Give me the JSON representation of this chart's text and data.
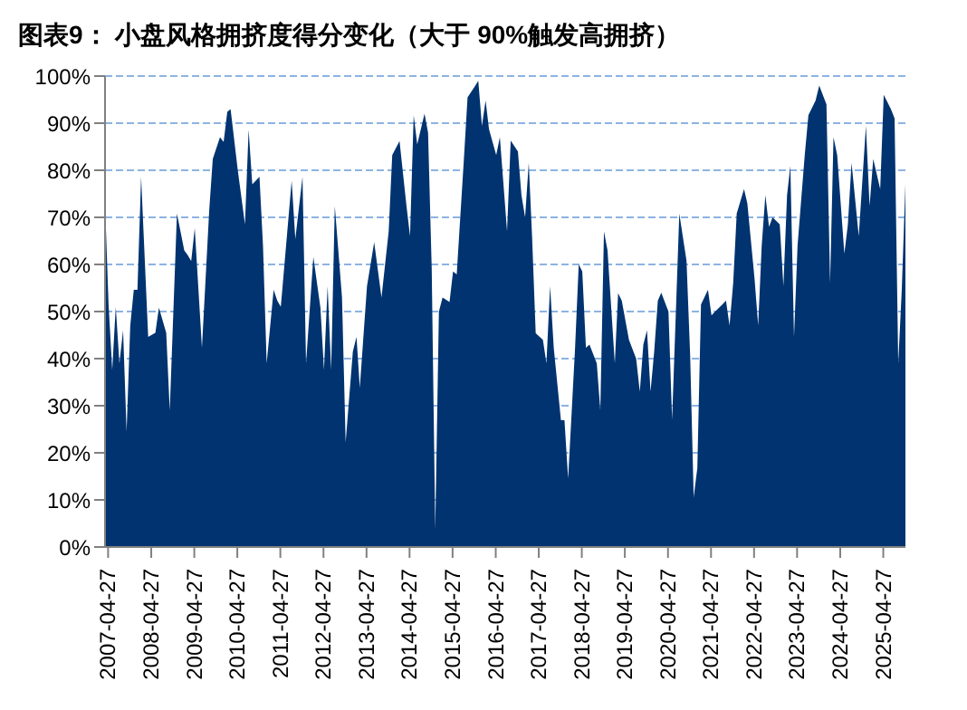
{
  "chart_data": {
    "type": "area",
    "title": "图表9：  小盘风格拥挤度得分变化（大于 90%触发高拥挤）",
    "x": [
      "2007-04",
      "2007-05",
      "2007-06",
      "2007-07",
      "2007-08",
      "2007-09",
      "2007-10",
      "2007-11",
      "2007-12",
      "2008-01",
      "2008-02",
      "2008-04",
      "2008-06",
      "2008-07",
      "2008-09",
      "2008-10",
      "2008-12",
      "2009-02",
      "2009-03",
      "2009-04",
      "2009-05",
      "2009-07",
      "2009-09",
      "2009-10",
      "2009-12",
      "2010-01",
      "2010-02",
      "2010-03",
      "2010-05",
      "2010-07",
      "2010-08",
      "2010-09",
      "2010-11",
      "2010-12",
      "2011-01",
      "2011-03",
      "2011-04",
      "2011-05",
      "2011-08",
      "2011-09",
      "2011-11",
      "2011-12",
      "2012-02",
      "2012-04",
      "2012-05",
      "2012-06",
      "2012-07",
      "2012-08",
      "2012-10",
      "2012-11",
      "2013-01",
      "2013-02",
      "2013-03",
      "2013-05",
      "2013-07",
      "2013-09",
      "2013-11",
      "2013-12",
      "2014-02",
      "2014-04",
      "2014-05",
      "2014-06",
      "2014-07",
      "2014-09",
      "2014-10",
      "2014-11",
      "2014-12",
      "2015-01",
      "2015-02",
      "2015-04",
      "2015-05",
      "2015-06",
      "2015-08",
      "2015-09",
      "2015-11",
      "2015-12",
      "2016-01",
      "2016-02",
      "2016-03",
      "2016-05",
      "2016-06",
      "2016-08",
      "2016-09",
      "2016-11",
      "2016-12",
      "2017-01",
      "2017-02",
      "2017-03",
      "2017-04",
      "2017-06",
      "2017-07",
      "2017-08",
      "2017-09",
      "2017-11",
      "2017-12",
      "2018-01",
      "2018-03",
      "2018-04",
      "2018-05",
      "2018-06",
      "2018-07",
      "2018-09",
      "2018-10",
      "2018-11",
      "2018-12",
      "2019-02",
      "2019-03",
      "2019-04",
      "2019-06",
      "2019-08",
      "2019-09",
      "2019-10",
      "2019-11",
      "2019-12",
      "2020-01",
      "2020-02",
      "2020-03",
      "2020-05",
      "2020-06",
      "2020-08",
      "2020-10",
      "2020-11",
      "2020-12",
      "2021-01",
      "2021-02",
      "2021-04",
      "2021-05",
      "2021-06",
      "2021-08",
      "2021-09",
      "2021-10",
      "2021-11",
      "2021-12",
      "2022-02",
      "2022-03",
      "2022-05",
      "2022-06",
      "2022-07",
      "2022-08",
      "2022-09",
      "2022-10",
      "2022-12",
      "2023-01",
      "2023-02",
      "2023-03",
      "2023-04",
      "2023-05",
      "2023-07",
      "2023-08",
      "2023-10",
      "2023-11",
      "2024-01",
      "2024-02",
      "2024-03",
      "2024-04",
      "2024-06",
      "2024-07",
      "2024-08",
      "2024-10",
      "2024-12",
      "2025-01",
      "2025-02",
      "2025-04",
      "2025-05",
      "2025-07",
      "2025-08",
      "2025-09",
      "2025-10",
      "2025-11"
    ],
    "series": [
      {
        "color": "#00336f",
        "values": [
          73,
          51.5,
          37.6,
          51,
          39,
          46,
          24.5,
          47,
          54.6,
          54.6,
          78.6,
          44.6,
          45.5,
          50.8,
          45.5,
          29,
          70.8,
          63,
          62,
          60.7,
          67.7,
          42.3,
          71.6,
          82.4,
          87,
          86,
          92.4,
          93,
          80,
          68.5,
          88.6,
          77,
          78.6,
          63.9,
          39,
          54.6,
          52.3,
          51,
          77.8,
          65.4,
          78.6,
          39,
          61.6,
          50.8,
          37.6,
          55.4,
          37.6,
          72.4,
          53,
          22.2,
          41.5,
          44.6,
          33.8,
          55.4,
          64.7,
          53,
          67,
          83.2,
          86.2,
          72.4,
          66,
          91.7,
          85.5,
          92,
          88,
          59,
          3.7,
          50,
          53,
          52,
          58.5,
          57.9,
          82.4,
          95.5,
          97.8,
          99,
          89.4,
          94.8,
          88.7,
          83.2,
          87,
          67,
          86.3,
          84,
          74.7,
          70,
          81.6,
          66,
          45.4,
          44,
          39,
          55.4,
          42.3,
          26.9,
          26.9,
          14.5,
          42.3,
          60,
          58.5,
          42.3,
          43,
          39,
          29,
          67,
          63,
          39,
          53.9,
          52.3,
          44,
          40,
          33,
          43,
          46,
          33,
          41.5,
          52.3,
          54,
          50,
          27,
          70.8,
          60.8,
          40.7,
          10.6,
          16.8,
          51.5,
          54.6,
          49.2,
          50,
          51.5,
          52.3,
          47,
          56,
          70.8,
          76,
          73,
          57,
          47,
          64,
          74.7,
          68,
          70,
          68.5,
          55.4,
          74.7,
          80.9,
          44.6,
          64,
          83.2,
          91.7,
          94.8,
          98,
          94,
          56,
          87,
          83.2,
          62.3,
          68.5,
          81.6,
          66,
          89.4,
          72.4,
          82.4,
          76,
          96,
          93,
          91,
          39,
          54.6,
          77
        ]
      }
    ],
    "xlim": [
      "2007-04",
      "2025-11"
    ],
    "xticks": [
      "2007-04-27",
      "2008-04-27",
      "2009-04-27",
      "2010-04-27",
      "2011-04-27",
      "2012-04-27",
      "2013-04-27",
      "2014-04-27",
      "2015-04-27",
      "2016-04-27",
      "2017-04-27",
      "2018-04-27",
      "2019-04-27",
      "2020-04-27",
      "2021-04-27",
      "2022-04-27",
      "2023-04-27",
      "2024-04-27",
      "2025-04-27"
    ],
    "ylim": [
      0,
      100
    ],
    "yticks": [
      {
        "value": 0,
        "label": "0%"
      },
      {
        "value": 10,
        "label": "10%"
      },
      {
        "value": 20,
        "label": "20%"
      },
      {
        "value": 30,
        "label": "30%"
      },
      {
        "value": 40,
        "label": "40%"
      },
      {
        "value": 50,
        "label": "50%"
      },
      {
        "value": 60,
        "label": "60%"
      },
      {
        "value": 70,
        "label": "70%"
      },
      {
        "value": 80,
        "label": "80%"
      },
      {
        "value": 90,
        "label": "90%"
      },
      {
        "value": 100,
        "label": "100%"
      }
    ],
    "grid": "y"
  }
}
